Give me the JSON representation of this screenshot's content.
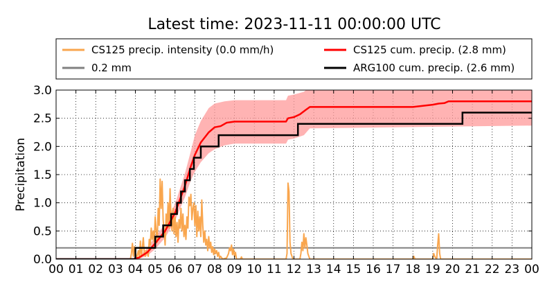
{
  "title": "Latest time: 2023-11-11 00:00:00 UTC",
  "chart_data": {
    "type": "line",
    "ylabel": "Precipitation",
    "xlabel": "",
    "xlim": [
      0,
      24
    ],
    "ylim": [
      0,
      3.0
    ],
    "x_ticks": [
      "00",
      "01",
      "02",
      "03",
      "04",
      "05",
      "06",
      "07",
      "08",
      "09",
      "10",
      "11",
      "12",
      "13",
      "14",
      "15",
      "16",
      "17",
      "18",
      "19",
      "20",
      "21",
      "22",
      "23",
      "00"
    ],
    "y_ticks": [
      "0.0",
      "0.5",
      "1.0",
      "1.5",
      "2.0",
      "2.5",
      "3.0"
    ],
    "grid": true,
    "legend_position": "top",
    "legend": [
      {
        "label": "CS125 precip. intensity (0.0 mm/h)",
        "color": "#f9a64e"
      },
      {
        "label": "CS125 cum. precip. (2.8 mm)",
        "color": "#ff0000"
      },
      {
        "label": "0.2 mm",
        "color": "#808080"
      },
      {
        "label": "ARG100 cum. precip. (2.6 mm)",
        "color": "#000000"
      }
    ],
    "reference_line": {
      "y": 0.2,
      "color": "#808080"
    },
    "series": [
      {
        "name": "CS125 precip. intensity (0.0 mm/h)",
        "color": "#f9a64e",
        "points": [
          [
            0,
            0
          ],
          [
            3.75,
            0
          ],
          [
            3.8,
            0.1
          ],
          [
            3.85,
            0.28
          ],
          [
            3.9,
            0.05
          ],
          [
            3.95,
            0.22
          ],
          [
            4.0,
            0.12
          ],
          [
            4.05,
            0
          ],
          [
            4.1,
            0.08
          ],
          [
            4.15,
            0.15
          ],
          [
            4.2,
            0.02
          ],
          [
            4.25,
            0.32
          ],
          [
            4.3,
            0.05
          ],
          [
            4.35,
            0.2
          ],
          [
            4.4,
            0.38
          ],
          [
            4.45,
            0.1
          ],
          [
            4.5,
            0.05
          ],
          [
            4.55,
            0.15
          ],
          [
            4.6,
            0.12
          ],
          [
            4.65,
            0.05
          ],
          [
            4.7,
            0.35
          ],
          [
            4.75,
            0.25
          ],
          [
            4.8,
            0.55
          ],
          [
            4.85,
            0.35
          ],
          [
            4.9,
            0.5
          ],
          [
            4.95,
            0.3
          ],
          [
            5.0,
            0.75
          ],
          [
            5.05,
            0.5
          ],
          [
            5.1,
            0.3
          ],
          [
            5.15,
            0.9
          ],
          [
            5.2,
            0.6
          ],
          [
            5.25,
            1.42
          ],
          [
            5.3,
            0.9
          ],
          [
            5.35,
            1.38
          ],
          [
            5.4,
            0.7
          ],
          [
            5.45,
            0.5
          ],
          [
            5.5,
            0.25
          ],
          [
            5.55,
            0.8
          ],
          [
            5.6,
            0.6
          ],
          [
            5.65,
            1.0
          ],
          [
            5.7,
            0.55
          ],
          [
            5.75,
            1.25
          ],
          [
            5.8,
            0.7
          ],
          [
            5.85,
            0.5
          ],
          [
            5.9,
            0.9
          ],
          [
            5.95,
            0.45
          ],
          [
            6.0,
            0.75
          ],
          [
            6.05,
            0.4
          ],
          [
            6.1,
            0.65
          ],
          [
            6.15,
            0.3
          ],
          [
            6.2,
            0.7
          ],
          [
            6.25,
            0.55
          ],
          [
            6.3,
            0.9
          ],
          [
            6.35,
            0.5
          ],
          [
            6.4,
            0.8
          ],
          [
            6.45,
            0.4
          ],
          [
            6.5,
            0.6
          ],
          [
            6.55,
            0.35
          ],
          [
            6.6,
            0.75
          ],
          [
            6.65,
            0.55
          ],
          [
            6.7,
            1.1
          ],
          [
            6.75,
            0.95
          ],
          [
            6.8,
            1.15
          ],
          [
            6.85,
            0.7
          ],
          [
            6.9,
            0.9
          ],
          [
            6.95,
            1.0
          ],
          [
            7.0,
            0.6
          ],
          [
            7.05,
            0.95
          ],
          [
            7.1,
            0.4
          ],
          [
            7.15,
            0.85
          ],
          [
            7.2,
            0.5
          ],
          [
            7.25,
            0.75
          ],
          [
            7.3,
            0.4
          ],
          [
            7.35,
            1.05
          ],
          [
            7.4,
            0.6
          ],
          [
            7.45,
            0.3
          ],
          [
            7.5,
            0.5
          ],
          [
            7.55,
            0.25
          ],
          [
            7.6,
            0.35
          ],
          [
            7.65,
            0.15
          ],
          [
            7.7,
            0.4
          ],
          [
            7.75,
            0.2
          ],
          [
            7.8,
            0.3
          ],
          [
            7.85,
            0.12
          ],
          [
            7.9,
            0.22
          ],
          [
            7.95,
            0.08
          ],
          [
            8.0,
            0.18
          ],
          [
            8.05,
            0.1
          ],
          [
            8.1,
            0.15
          ],
          [
            8.15,
            0.05
          ],
          [
            8.2,
            0.12
          ],
          [
            8.25,
            0.02
          ],
          [
            8.3,
            0.05
          ],
          [
            8.4,
            0
          ],
          [
            8.6,
            0.02
          ],
          [
            8.7,
            0.1
          ],
          [
            8.75,
            0.2
          ],
          [
            8.8,
            0.15
          ],
          [
            8.85,
            0.25
          ],
          [
            8.9,
            0.08
          ],
          [
            8.95,
            0.18
          ],
          [
            9.0,
            0.05
          ],
          [
            9.05,
            0.12
          ],
          [
            9.1,
            0
          ],
          [
            9.3,
            0
          ],
          [
            9.35,
            0.04
          ],
          [
            9.4,
            0
          ],
          [
            11.6,
            0
          ],
          [
            11.65,
            0.1
          ],
          [
            11.7,
            1.35
          ],
          [
            11.75,
            1.2
          ],
          [
            11.8,
            0.3
          ],
          [
            11.85,
            0.1
          ],
          [
            11.9,
            0.05
          ],
          [
            11.95,
            0
          ],
          [
            12.3,
            0
          ],
          [
            12.35,
            0.1
          ],
          [
            12.4,
            0.3
          ],
          [
            12.45,
            0.15
          ],
          [
            12.5,
            0.45
          ],
          [
            12.55,
            0.2
          ],
          [
            12.6,
            0.38
          ],
          [
            12.65,
            0.25
          ],
          [
            12.7,
            0.1
          ],
          [
            12.75,
            0.05
          ],
          [
            12.8,
            0
          ],
          [
            18.0,
            0
          ],
          [
            18.05,
            0.05
          ],
          [
            18.1,
            0
          ],
          [
            19.0,
            0
          ],
          [
            19.05,
            0.1
          ],
          [
            19.1,
            0.05
          ],
          [
            19.15,
            0.02
          ],
          [
            19.2,
            0
          ],
          [
            19.25,
            0.25
          ],
          [
            19.3,
            0.45
          ],
          [
            19.35,
            0.1
          ],
          [
            19.4,
            0
          ],
          [
            24,
            0
          ]
        ]
      },
      {
        "name": "CS125 cum. precip. (2.8 mm)",
        "color": "#ff0000",
        "band_color": "#ff9999",
        "points": [
          [
            0,
            0
          ],
          [
            3.9,
            0
          ],
          [
            4.2,
            0.03
          ],
          [
            4.6,
            0.12
          ],
          [
            5.0,
            0.28
          ],
          [
            5.5,
            0.5
          ],
          [
            6.0,
            0.82
          ],
          [
            6.5,
            1.3
          ],
          [
            6.8,
            1.65
          ],
          [
            7.0,
            1.85
          ],
          [
            7.3,
            2.07
          ],
          [
            7.7,
            2.25
          ],
          [
            8.0,
            2.34
          ],
          [
            8.3,
            2.36
          ],
          [
            8.6,
            2.42
          ],
          [
            9.0,
            2.44
          ],
          [
            11.6,
            2.44
          ],
          [
            11.7,
            2.5
          ],
          [
            12.0,
            2.52
          ],
          [
            12.3,
            2.57
          ],
          [
            12.6,
            2.65
          ],
          [
            12.8,
            2.7
          ],
          [
            18.0,
            2.7
          ],
          [
            18.5,
            2.72
          ],
          [
            19.0,
            2.74
          ],
          [
            19.3,
            2.76
          ],
          [
            19.6,
            2.77
          ],
          [
            19.8,
            2.8
          ],
          [
            24,
            2.8
          ]
        ],
        "band_upper": [
          [
            3.9,
            0
          ],
          [
            4.2,
            0.05
          ],
          [
            4.6,
            0.2
          ],
          [
            5.0,
            0.4
          ],
          [
            5.5,
            0.62
          ],
          [
            6.0,
            0.98
          ],
          [
            6.5,
            1.52
          ],
          [
            6.8,
            1.92
          ],
          [
            7.0,
            2.2
          ],
          [
            7.3,
            2.45
          ],
          [
            7.7,
            2.68
          ],
          [
            8.0,
            2.76
          ],
          [
            8.5,
            2.8
          ],
          [
            9.0,
            2.82
          ],
          [
            11.6,
            2.82
          ],
          [
            11.7,
            2.9
          ],
          [
            12.0,
            2.92
          ],
          [
            12.5,
            2.97
          ],
          [
            12.8,
            3.05
          ],
          [
            24,
            3.05
          ]
        ],
        "band_lower": [
          [
            3.9,
            0
          ],
          [
            4.2,
            0.01
          ],
          [
            4.6,
            0.06
          ],
          [
            5.0,
            0.18
          ],
          [
            5.5,
            0.38
          ],
          [
            6.0,
            0.68
          ],
          [
            6.5,
            1.1
          ],
          [
            6.8,
            1.4
          ],
          [
            7.0,
            1.55
          ],
          [
            7.3,
            1.72
          ],
          [
            7.7,
            1.88
          ],
          [
            8.0,
            1.95
          ],
          [
            8.5,
            2.02
          ],
          [
            9.0,
            2.05
          ],
          [
            11.6,
            2.05
          ],
          [
            11.7,
            2.12
          ],
          [
            12.0,
            2.14
          ],
          [
            12.5,
            2.2
          ],
          [
            12.8,
            2.32
          ],
          [
            24,
            2.37
          ]
        ]
      },
      {
        "name": "ARG100 cum. precip. (2.6 mm)",
        "color": "#000000",
        "step": true,
        "points": [
          [
            0,
            0
          ],
          [
            4.0,
            0
          ],
          [
            4.0,
            0.2
          ],
          [
            5.0,
            0.2
          ],
          [
            5.0,
            0.4
          ],
          [
            5.4,
            0.4
          ],
          [
            5.4,
            0.6
          ],
          [
            5.8,
            0.6
          ],
          [
            5.8,
            0.8
          ],
          [
            6.1,
            0.8
          ],
          [
            6.1,
            1.0
          ],
          [
            6.3,
            1.0
          ],
          [
            6.3,
            1.2
          ],
          [
            6.5,
            1.2
          ],
          [
            6.5,
            1.4
          ],
          [
            6.75,
            1.4
          ],
          [
            6.75,
            1.6
          ],
          [
            6.95,
            1.6
          ],
          [
            6.95,
            1.8
          ],
          [
            7.3,
            1.8
          ],
          [
            7.3,
            2.0
          ],
          [
            8.2,
            2.0
          ],
          [
            8.2,
            2.2
          ],
          [
            12.2,
            2.2
          ],
          [
            12.2,
            2.4
          ],
          [
            20.5,
            2.4
          ],
          [
            20.5,
            2.6
          ],
          [
            24,
            2.6
          ]
        ]
      }
    ]
  }
}
